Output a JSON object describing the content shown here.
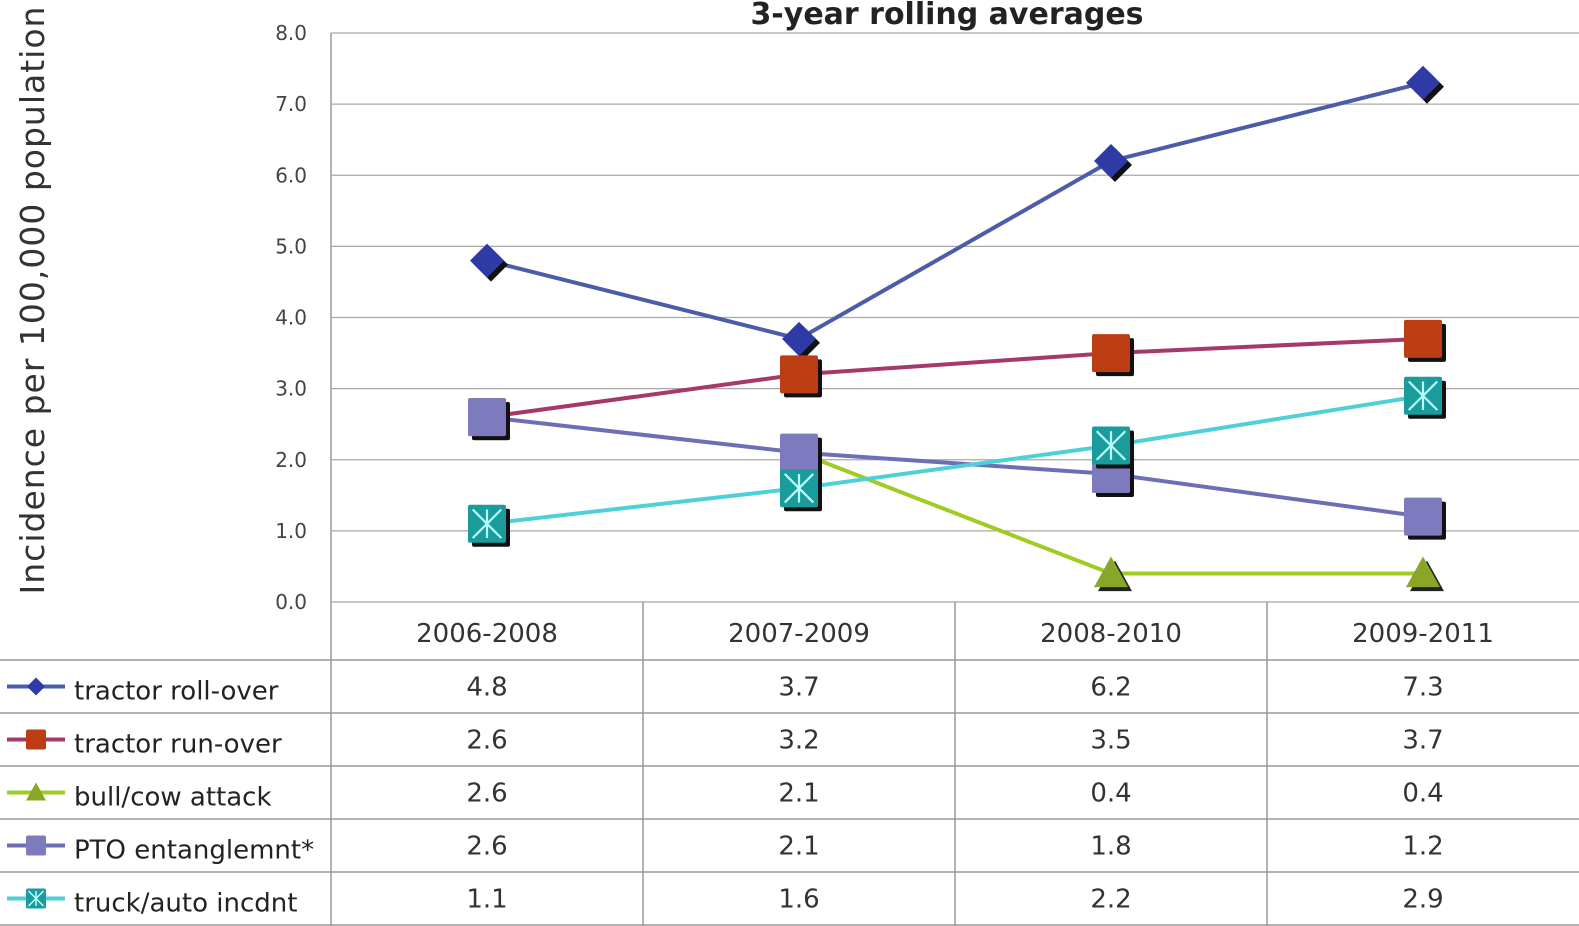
{
  "chart_data": {
    "type": "line",
    "title": "3-year rolling averages",
    "ylabel": "Incidence per 100,000  population",
    "xlabel": "",
    "ylim": [
      0,
      8
    ],
    "yticks": [
      "0.0",
      "1.0",
      "2.0",
      "3.0",
      "4.0",
      "5.0",
      "6.0",
      "7.0",
      "8.0"
    ],
    "grid": true,
    "legend": "data-table-left",
    "categories": [
      "2006-2008",
      "2007-2009",
      "2008-2010",
      "2009-2011"
    ],
    "series": [
      {
        "name": "tractor roll-over",
        "values": [
          4.8,
          3.7,
          6.2,
          7.3
        ],
        "marker": "diamond",
        "color": "#4b5ca8",
        "marker_color": "#2e3ba6"
      },
      {
        "name": "tractor run-over",
        "values": [
          2.6,
          3.2,
          3.5,
          3.7
        ],
        "marker": "square",
        "color": "#a4396a",
        "marker_color": "#bb3d11"
      },
      {
        "name": "bull/cow attack",
        "values": [
          2.6,
          2.1,
          0.4,
          0.4
        ],
        "marker": "triangle",
        "color": "#9fcc22",
        "marker_color": "#8aa628"
      },
      {
        "name": "PTO entanglemnt*",
        "values": [
          2.6,
          2.1,
          1.8,
          1.2
        ],
        "marker": "square",
        "color": "#6e6eb4",
        "marker_color": "#7d7bbe"
      },
      {
        "name": "truck/auto incdnt",
        "values": [
          1.1,
          1.6,
          2.2,
          2.9
        ],
        "marker": "xsquare",
        "color": "#4fd0d8",
        "marker_color": "#1a9c9c"
      }
    ],
    "table": [
      [
        "4.8",
        "3.7",
        "6.2",
        "7.3"
      ],
      [
        "2.6",
        "3.2",
        "3.5",
        "3.7"
      ],
      [
        "2.6",
        "2.1",
        "0.4",
        "0.4"
      ],
      [
        "2.6",
        "2.1",
        "1.8",
        "1.2"
      ],
      [
        "1.1",
        "1.6",
        "2.2",
        "2.9"
      ]
    ]
  }
}
